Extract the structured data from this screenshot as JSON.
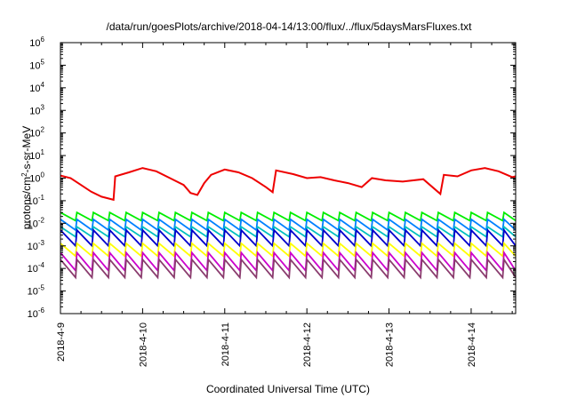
{
  "chart_data": {
    "type": "line",
    "title": "/data/run/goesPlots/archive/2018-04-14/13:00/flux/../flux/5daysMarsFluxes.txt",
    "xlabel": "Coordinated Universal Time (UTC)",
    "ylabel_parts": {
      "base": "protons/cm",
      "sup": "2",
      "rest": "-s-sr-MeV"
    },
    "yscale": "log",
    "ylim": [
      1e-06,
      1000000.0
    ],
    "xlim": [
      "2018-04-09 00:00",
      "2018-04-14 13:00"
    ],
    "x_ticks": [
      "2018-4-9",
      "2018-4-10",
      "2018-4-11",
      "2018-4-12",
      "2018-4-13",
      "2018-4-14"
    ],
    "y_ticks": [
      {
        "value": 1e-06,
        "base": "10",
        "exp": "-6"
      },
      {
        "value": 1e-05,
        "base": "10",
        "exp": "-5"
      },
      {
        "value": 0.0001,
        "base": "10",
        "exp": "-4"
      },
      {
        "value": 0.001,
        "base": "10",
        "exp": "-3"
      },
      {
        "value": 0.01,
        "base": "10",
        "exp": "-2"
      },
      {
        "value": 0.1,
        "base": "10",
        "exp": "-1"
      },
      {
        "value": 1,
        "base": "10",
        "exp": "0"
      },
      {
        "value": 10.0,
        "base": "10",
        "exp": "1"
      },
      {
        "value": 100.0,
        "base": "10",
        "exp": "2"
      },
      {
        "value": 1000.0,
        "base": "10",
        "exp": "3"
      },
      {
        "value": 10000.0,
        "base": "10",
        "exp": "4"
      },
      {
        "value": 100000.0,
        "base": "10",
        "exp": "5"
      },
      {
        "value": 1000000.0,
        "base": "10",
        "exp": "6"
      }
    ],
    "grid": false,
    "legend": "none",
    "sawtooth_period_hours": 4.8,
    "series": [
      {
        "color": "#ee0000",
        "points": [
          [
            "2018-04-09 00:00",
            1.3
          ],
          [
            "2018-04-09 03:00",
            1.0
          ],
          [
            "2018-04-09 06:00",
            0.5
          ],
          [
            "2018-04-09 09:00",
            0.25
          ],
          [
            "2018-04-09 12:00",
            0.15
          ],
          [
            "2018-04-09 15:30",
            0.11
          ],
          [
            "2018-04-09 16:00",
            1.2
          ],
          [
            "2018-04-09 20:00",
            1.8
          ],
          [
            "2018-04-10 00:00",
            2.8
          ],
          [
            "2018-04-10 04:00",
            2.0
          ],
          [
            "2018-04-10 08:00",
            1.0
          ],
          [
            "2018-04-10 12:00",
            0.5
          ],
          [
            "2018-04-10 14:00",
            0.22
          ],
          [
            "2018-04-10 16:00",
            0.18
          ],
          [
            "2018-04-10 18:00",
            0.6
          ],
          [
            "2018-04-10 20:00",
            1.4
          ],
          [
            "2018-04-11 00:00",
            2.4
          ],
          [
            "2018-04-11 04:00",
            1.8
          ],
          [
            "2018-04-11 08:00",
            1.0
          ],
          [
            "2018-04-11 12:00",
            0.4
          ],
          [
            "2018-04-11 14:00",
            0.24
          ],
          [
            "2018-04-11 15:00",
            2.2
          ],
          [
            "2018-04-11 20:00",
            1.5
          ],
          [
            "2018-04-12 00:00",
            1.0
          ],
          [
            "2018-04-12 04:00",
            1.1
          ],
          [
            "2018-04-12 08:00",
            0.8
          ],
          [
            "2018-04-12 12:00",
            0.6
          ],
          [
            "2018-04-12 16:00",
            0.4
          ],
          [
            "2018-04-12 19:00",
            1.0
          ],
          [
            "2018-04-12 23:00",
            0.8
          ],
          [
            "2018-04-13 04:00",
            0.7
          ],
          [
            "2018-04-13 10:00",
            0.9
          ],
          [
            "2018-04-13 15:00",
            0.2
          ],
          [
            "2018-04-13 16:00",
            1.4
          ],
          [
            "2018-04-13 20:00",
            1.2
          ],
          [
            "2018-04-14 00:00",
            2.2
          ],
          [
            "2018-04-14 04:00",
            2.8
          ],
          [
            "2018-04-14 08:00",
            2.0
          ],
          [
            "2018-04-14 12:00",
            1.1
          ],
          [
            "2018-04-14 13:00",
            1.2
          ]
        ]
      },
      {
        "color": "#00ee00",
        "sawtooth": {
          "low": 0.013,
          "high": 0.03
        }
      },
      {
        "color": "#0080ff",
        "sawtooth": {
          "low": 0.005,
          "high": 0.015
        }
      },
      {
        "color": "#00c0c0",
        "sawtooth": {
          "low": 0.0025,
          "high": 0.007
        }
      },
      {
        "color": "#0000cc",
        "sawtooth": {
          "low": 0.001,
          "high": 0.005
        }
      },
      {
        "color": "#ffff00",
        "sawtooth": {
          "low": 0.00035,
          "high": 0.0013
        }
      },
      {
        "color": "#cc00cc",
        "sawtooth": {
          "low": 8e-05,
          "high": 0.0005
        }
      },
      {
        "color": "#8a3c6e",
        "sawtooth": {
          "low": 4e-05,
          "high": 0.00025
        }
      }
    ]
  }
}
